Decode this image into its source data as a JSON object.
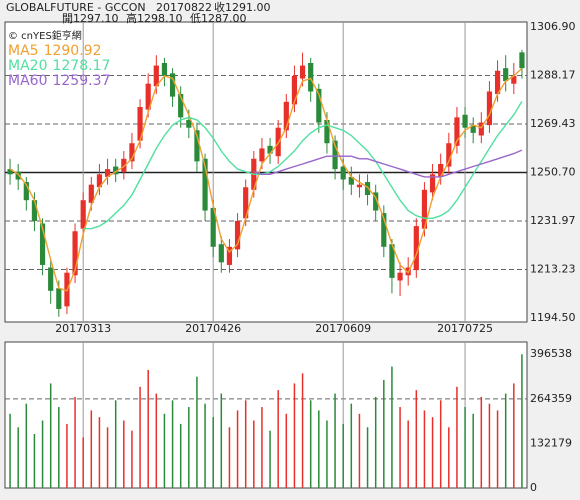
{
  "chart_data": {
    "type": "candlestick",
    "header": {
      "symbol": "GLOBALFUTURE - GCCON",
      "date": "20170822",
      "close": "收1291.00",
      "open": "開1297.10",
      "high": "高1298.10",
      "low": "低1287.00"
    },
    "credit": "© cnYES鉅亨網",
    "categories": [
      null,
      null,
      null,
      null,
      null,
      null,
      null,
      null,
      null,
      "20170313",
      null,
      null,
      null,
      null,
      null,
      null,
      null,
      null,
      null,
      null,
      null,
      null,
      null,
      null,
      null,
      "20170426",
      null,
      null,
      null,
      null,
      null,
      null,
      null,
      null,
      null,
      null,
      null,
      null,
      null,
      null,
      null,
      "20170609",
      null,
      null,
      null,
      null,
      null,
      null,
      null,
      null,
      null,
      null,
      null,
      null,
      null,
      null,
      "20170725",
      null,
      null,
      null,
      null,
      null,
      null,
      null
    ],
    "open": [
      1252,
      1251,
      1247,
      1240,
      1231,
      1214,
      1206,
      1199,
      1211,
      1229,
      1239,
      1245,
      1249,
      1253,
      1251,
      1255,
      1263,
      1275,
      1284,
      1293,
      1289,
      1281,
      1271,
      1267,
      1256,
      1237,
      1223,
      1215,
      1221,
      1233,
      1244,
      1255,
      1261,
      1257,
      1267,
      1277,
      1287,
      1293,
      1283,
      1271,
      1263,
      1253,
      1249,
      1245,
      1247,
      1243,
      1235,
      1223,
      1209,
      1211,
      1213,
      1229,
      1243,
      1249,
      1253,
      1261,
      1273,
      1269,
      1265,
      1269,
      1281,
      1291,
      1285,
      1297.1
    ],
    "high": [
      1256,
      1254,
      1249,
      1243,
      1233,
      1217,
      1209,
      1214,
      1231,
      1243,
      1249,
      1254,
      1256,
      1256,
      1259,
      1266,
      1279,
      1289,
      1296,
      1295,
      1291,
      1284,
      1275,
      1270,
      1258,
      1240,
      1226,
      1225,
      1235,
      1248,
      1259,
      1264,
      1264,
      1271,
      1281,
      1292,
      1297,
      1295,
      1285,
      1274,
      1265,
      1256,
      1253,
      1250,
      1250,
      1246,
      1238,
      1225,
      1216,
      1218,
      1233,
      1247,
      1254,
      1258,
      1266,
      1276,
      1276,
      1272,
      1274,
      1286,
      1294,
      1296,
      1293,
      1298.1
    ],
    "low": [
      1246,
      1244,
      1236,
      1228,
      1211,
      1200,
      1195,
      1196,
      1208,
      1226,
      1236,
      1242,
      1246,
      1247,
      1248,
      1252,
      1260,
      1272,
      1281,
      1284,
      1276,
      1268,
      1264,
      1251,
      1232,
      1218,
      1212,
      1212,
      1218,
      1230,
      1241,
      1252,
      1254,
      1254,
      1264,
      1274,
      1284,
      1278,
      1266,
      1258,
      1248,
      1244,
      1242,
      1241,
      1238,
      1232,
      1218,
      1204,
      1203,
      1207,
      1210,
      1226,
      1240,
      1246,
      1250,
      1258,
      1264,
      1262,
      1262,
      1266,
      1278,
      1282,
      1281,
      1287
    ],
    "close": [
      1250,
      1248,
      1240,
      1232,
      1215,
      1205,
      1198,
      1212,
      1228,
      1240,
      1246,
      1250,
      1252,
      1250,
      1256,
      1262,
      1276,
      1285,
      1292,
      1288,
      1280,
      1272,
      1268,
      1255,
      1236,
      1222,
      1216,
      1222,
      1232,
      1245,
      1256,
      1260,
      1258,
      1268,
      1278,
      1288,
      1292,
      1282,
      1270,
      1262,
      1252,
      1248,
      1246,
      1246,
      1242,
      1236,
      1222,
      1210,
      1212,
      1214,
      1230,
      1244,
      1250,
      1254,
      1262,
      1272,
      1268,
      1266,
      1270,
      1282,
      1290,
      1286,
      1288,
      1291
    ],
    "up_color": "#e8302a",
    "down_color": "#2a8a3a",
    "series": [
      {
        "name": "MA5",
        "color": "#f0a030",
        "values": [
          1252,
          1250,
          1246,
          1240,
          1229,
          1217,
          1206,
          1205,
          1213,
          1227,
          1238,
          1245,
          1249,
          1251,
          1253,
          1256,
          1263,
          1274,
          1284,
          1288,
          1287,
          1280,
          1273,
          1265,
          1253,
          1238,
          1225,
          1220,
          1223,
          1233,
          1244,
          1254,
          1258,
          1262,
          1268,
          1278,
          1286,
          1287,
          1281,
          1271,
          1261,
          1254,
          1249,
          1247,
          1245,
          1241,
          1233,
          1223,
          1215,
          1212,
          1219,
          1229,
          1241,
          1249,
          1255,
          1263,
          1267,
          1269,
          1268,
          1273,
          1281,
          1286,
          1288,
          1290.92
        ]
      },
      {
        "name": "MA20",
        "color": "#50e0a0",
        "values": [
          null,
          null,
          null,
          null,
          null,
          null,
          null,
          null,
          null,
          1229,
          1229,
          1230,
          1232,
          1235,
          1238,
          1242,
          1248,
          1254,
          1260,
          1265,
          1269,
          1271,
          1272,
          1271,
          1268,
          1264,
          1259,
          1255,
          1252,
          1251,
          1250,
          1250,
          1251,
          1253,
          1256,
          1259,
          1263,
          1266,
          1268,
          1269,
          1268,
          1267,
          1265,
          1262,
          1259,
          1255,
          1250,
          1245,
          1240,
          1236,
          1234,
          1233,
          1233,
          1234,
          1236,
          1240,
          1245,
          1250,
          1255,
          1260,
          1265,
          1269,
          1273,
          1278.17
        ]
      },
      {
        "name": "MA60",
        "color": "#9966cc",
        "values": [
          null,
          null,
          null,
          null,
          null,
          null,
          null,
          null,
          null,
          null,
          null,
          null,
          null,
          null,
          null,
          null,
          null,
          null,
          null,
          null,
          null,
          null,
          null,
          null,
          null,
          null,
          null,
          null,
          null,
          null,
          1251,
          1250,
          1250,
          1251,
          1252,
          1253,
          1254,
          1255,
          1256,
          1257,
          1257,
          1257,
          1257,
          1256,
          1256,
          1255,
          1254,
          1253,
          1252,
          1251,
          1250,
          1249,
          1249,
          1249,
          1250,
          1251,
          1252,
          1253,
          1254,
          1255,
          1256,
          1257,
          1258,
          1259.37
        ]
      }
    ],
    "ylim": [
      1194.5,
      1306.9
    ],
    "yticks": [
      {
        "value": 1306.9,
        "label": "1306.90"
      },
      1288.17,
      1269.43,
      {
        "value": 1250.7,
        "label": "1250.70"
      },
      1231.97,
      1213.23,
      {
        "value": 1194.5,
        "label": "1194.50"
      }
    ],
    "volume": [
      220000,
      180000,
      250000,
      160000,
      200000,
      310000,
      240000,
      190000,
      270000,
      150000,
      230000,
      210000,
      180000,
      260000,
      200000,
      170000,
      300000,
      350000,
      280000,
      220000,
      260000,
      190000,
      240000,
      330000,
      250000,
      210000,
      280000,
      180000,
      230000,
      260000,
      200000,
      240000,
      170000,
      290000,
      220000,
      310000,
      340000,
      260000,
      230000,
      200000,
      280000,
      190000,
      250000,
      220000,
      180000,
      270000,
      320000,
      360000,
      240000,
      200000,
      290000,
      230000,
      210000,
      260000,
      180000,
      300000,
      240000,
      220000,
      270000,
      250000,
      230000,
      280000,
      310000,
      396538
    ],
    "y2lim": [
      0,
      415000
    ],
    "y2ticks": [
      0,
      132179,
      264359,
      396538
    ]
  }
}
